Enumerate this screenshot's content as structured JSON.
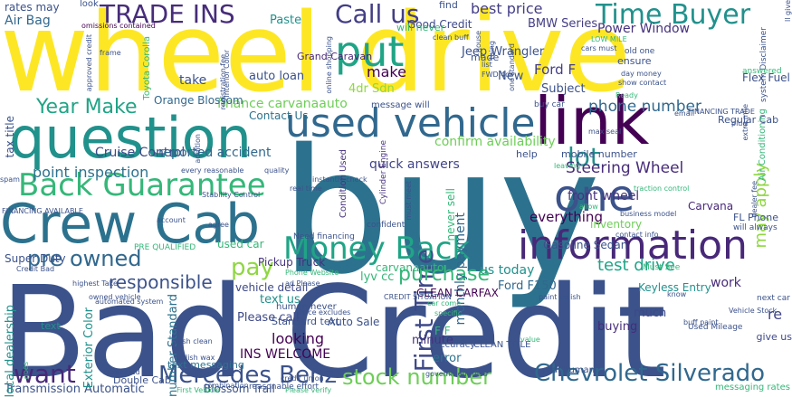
{
  "words": [
    {
      "t": "wheel drive",
      "c": "#fde725"
    },
    {
      "t": "Bad Credit",
      "c": "#3b528b"
    },
    {
      "t": "buy",
      "c": "#2c728e"
    },
    {
      "t": "question",
      "c": "#21918c"
    },
    {
      "t": "link",
      "c": "#440154"
    },
    {
      "t": "Crew Cab",
      "c": "#2c728e"
    },
    {
      "t": "used vehicle",
      "c": "#31688e"
    },
    {
      "t": "information",
      "c": "#482878"
    },
    {
      "t": "put",
      "c": "#20a486"
    },
    {
      "t": "one",
      "c": "#3b528b"
    },
    {
      "t": "Back Guarantee",
      "c": "#35b779"
    },
    {
      "t": "Money Back",
      "c": "#20a486"
    },
    {
      "t": "TRADE INS",
      "c": "#472c7a"
    },
    {
      "t": "Time Buyer",
      "c": "#21918c"
    },
    {
      "t": "Call us",
      "c": "#433e85"
    },
    {
      "t": "First Time",
      "c": "#3e4989"
    },
    {
      "t": "Chevrolet Silverado",
      "c": "#31688e"
    },
    {
      "t": "Mercedes Benz",
      "c": "#3b528b"
    },
    {
      "t": "stock number",
      "c": "#6ece58"
    },
    {
      "t": "pre owned",
      "c": "#31688e"
    },
    {
      "t": "pay",
      "c": "#90d743"
    },
    {
      "t": "want",
      "c": "#482878"
    },
    {
      "t": "Year Make",
      "c": "#20a486"
    },
    {
      "t": "purchase",
      "c": "#35b779"
    },
    {
      "t": "lot",
      "c": "#21918c"
    },
    {
      "t": "Steering Wheel",
      "c": "#472c7a"
    },
    {
      "t": "test drive",
      "c": "#20a486"
    },
    {
      "t": "phone number",
      "c": "#31688e"
    },
    {
      "t": "responsible",
      "c": "#3b528b"
    },
    {
      "t": "best price",
      "c": "#433e85"
    },
    {
      "t": "Cruise Control",
      "c": "#3e4989"
    },
    {
      "t": "reported accident",
      "c": "#31688e"
    },
    {
      "t": "point inspection",
      "c": "#2c728e"
    },
    {
      "t": "finance carvanaauto",
      "c": "#6ece58"
    },
    {
      "t": "quick answers",
      "c": "#414487"
    },
    {
      "t": "confirm availability",
      "c": "#6ece58"
    },
    {
      "t": "Contact Us",
      "c": "#2c728e"
    },
    {
      "t": "Orange Blossom",
      "c": "#31688e"
    },
    {
      "t": "auto loan",
      "c": "#3b528b"
    },
    {
      "t": "make",
      "c": "#440154"
    },
    {
      "t": "take",
      "c": "#3b528b"
    },
    {
      "t": "Subject",
      "c": "#3b528b"
    },
    {
      "t": "Ford F",
      "c": "#433e85"
    },
    {
      "t": "Power Window",
      "c": "#46327e"
    },
    {
      "t": "BMW Series",
      "c": "#433e85"
    },
    {
      "t": "Jeep Wrangler",
      "c": "#3b528b"
    },
    {
      "t": "Good Credit",
      "c": "#3e4989"
    },
    {
      "t": "Grand Caravan",
      "c": "#482878"
    },
    {
      "t": "front wheel",
      "c": "#46327e"
    },
    {
      "t": "everything",
      "c": "#440154"
    },
    {
      "t": "may apply",
      "c": "#90d743"
    },
    {
      "t": "Carvana",
      "c": "#482878"
    },
    {
      "t": "Ford F150",
      "c": "#31688e"
    },
    {
      "t": "Keyless Entry",
      "c": "#21918c"
    },
    {
      "t": "monthly payment",
      "c": "#31688e"
    },
    {
      "t": "text us",
      "c": "#21918c"
    },
    {
      "t": "us today",
      "c": "#21918c"
    },
    {
      "t": "Please call",
      "c": "#3e4989"
    },
    {
      "t": "looking",
      "c": "#440154"
    },
    {
      "t": "minute",
      "c": "#46327e"
    },
    {
      "t": "vehicle detail",
      "c": "#3e4989"
    },
    {
      "t": "Pickup Truck",
      "c": "#46327e"
    },
    {
      "t": "used car",
      "c": "#35b779"
    },
    {
      "t": "Super Duty",
      "c": "#3b528b"
    },
    {
      "t": "Transmission Automatic",
      "c": "#3b528b"
    },
    {
      "t": "INS WELCOME",
      "c": "#440154"
    },
    {
      "t": "buying",
      "c": "#472c7a"
    },
    {
      "t": "much",
      "c": "#3e4989"
    },
    {
      "t": "work",
      "c": "#472c7a"
    },
    {
      "t": "re",
      "c": "#414487"
    },
    {
      "t": "error",
      "c": "#2c728e"
    },
    {
      "t": "F F",
      "c": "#35b779"
    },
    {
      "t": "Auto Sale",
      "c": "#3b528b"
    },
    {
      "t": "CLEAN CARFAX",
      "c": "#440154"
    },
    {
      "t": "Gasoline Sedan",
      "c": "#3b528b"
    },
    {
      "t": "Flex Fuel",
      "c": "#3b528b"
    },
    {
      "t": "Air Bag",
      "c": "#31688e"
    },
    {
      "t": "rates may",
      "c": "#3b528b"
    },
    {
      "t": "tax title",
      "c": "#3b528b"
    },
    {
      "t": "text",
      "c": "#21918c"
    },
    {
      "t": "local dealership",
      "c": "#21918c"
    },
    {
      "t": "Exterior Color",
      "c": "#21918c"
    },
    {
      "t": "Double Cab",
      "c": "#3b528b"
    },
    {
      "t": "Blossom Trail",
      "c": "#3b528b"
    },
    {
      "t": "number Standard",
      "c": "#2c728e"
    },
    {
      "t": "text messaging",
      "c": "#2c728e"
    },
    {
      "t": "Standard text",
      "c": "#3b528b"
    },
    {
      "t": "human never",
      "c": "#3b528b"
    },
    {
      "t": "lyv cc",
      "c": "#35b779"
    },
    {
      "t": "carvanaauto",
      "c": "#35b779"
    },
    {
      "t": "Condition Used",
      "c": "#46327e"
    },
    {
      "t": "never sell",
      "c": "#35b779"
    },
    {
      "t": "Cylinder Engine",
      "c": "#46327e"
    },
    {
      "t": "mobile number",
      "c": "#3b528b"
    },
    {
      "t": "help",
      "c": "#3b528b"
    },
    {
      "t": "give us",
      "c": "#3e4989"
    },
    {
      "t": "Vehicle Stock",
      "c": "#3b528b"
    },
    {
      "t": "next car",
      "c": "#3b528b"
    },
    {
      "t": "Regular Cab",
      "c": "#3b528b"
    },
    {
      "t": "Air Conditioning",
      "c": "#35b779"
    },
    {
      "t": "FL Phone",
      "c": "#3b528b"
    },
    {
      "t": "will always",
      "c": "#3b528b"
    },
    {
      "t": "inventory",
      "c": "#6ece58"
    },
    {
      "t": "Paste",
      "c": "#21918c"
    },
    {
      "t": "find",
      "c": "#3b528b"
    },
    {
      "t": "will never",
      "c": "#35b779"
    },
    {
      "t": "4dr Sdn",
      "c": "#90d743"
    },
    {
      "t": "New",
      "c": "#3b528b"
    },
    {
      "t": "made",
      "c": "#3b528b"
    },
    {
      "t": "ensure",
      "c": "#3b528b"
    },
    {
      "t": "buy car",
      "c": "#3b528b"
    },
    {
      "t": "look",
      "c": "#3b528b"
    },
    {
      "t": "frame",
      "c": "#3b528b"
    },
    {
      "t": "approved credit",
      "c": "#3b528b"
    },
    {
      "t": "Toyota Corolla",
      "c": "#35b779"
    },
    {
      "t": "message will",
      "c": "#3b528b"
    },
    {
      "t": "omissions contained",
      "c": "#440154"
    },
    {
      "t": "real human",
      "c": "#3b528b"
    },
    {
      "t": "CLEAN TITLE",
      "c": "#3b528b"
    },
    {
      "t": "accuracy",
      "c": "#3b528b"
    },
    {
      "t": "government fees",
      "c": "#3b528b"
    },
    {
      "t": "polish wax",
      "c": "#3b528b"
    },
    {
      "t": "wash clean",
      "c": "#3b528b"
    },
    {
      "t": "Must See",
      "c": "#35b779"
    },
    {
      "t": "Used Mileage",
      "c": "#3b528b"
    },
    {
      "t": "buff paint",
      "c": "#3b528b"
    },
    {
      "t": "messaging rates",
      "c": "#35b779"
    },
    {
      "t": "system Disclaimer",
      "c": "#3b528b"
    },
    {
      "t": "show contact",
      "c": "#3b528b"
    },
    {
      "t": "day money",
      "c": "#3b528b"
    },
    {
      "t": "old one",
      "c": "#3b528b"
    },
    {
      "t": "cars must",
      "c": "#3b528b"
    },
    {
      "t": "answered",
      "c": "#35b779"
    },
    {
      "t": "ll give",
      "c": "#3b528b"
    },
    {
      "t": "Need financing",
      "c": "#3b528b"
    },
    {
      "t": "real time",
      "c": "#3b528b"
    },
    {
      "t": "Phone Website",
      "c": "#35b779"
    },
    {
      "t": "PRE QUALIFIED",
      "c": "#35b779"
    },
    {
      "t": "Credit Bad",
      "c": "#3b528b"
    },
    {
      "t": "owned vehicle",
      "c": "#3b528b"
    },
    {
      "t": "reasonable effort",
      "c": "#3b528b"
    },
    {
      "t": "credit union",
      "c": "#3b528b"
    },
    {
      "t": "Please verify",
      "c": "#35b779"
    },
    {
      "t": "dedicated",
      "c": "#3b528b"
    },
    {
      "t": "First Vehicle",
      "c": "#35b779"
    },
    {
      "t": "every reasonable",
      "c": "#3b528b"
    },
    {
      "t": "quality",
      "c": "#3b528b"
    },
    {
      "t": "Stability Control",
      "c": "#3b528b"
    },
    {
      "t": "FINANCING AVAILABLE",
      "c": "#3b528b"
    },
    {
      "t": "account",
      "c": "#3b528b"
    },
    {
      "t": "agree",
      "c": "#3b528b"
    },
    {
      "t": "business model",
      "c": "#3b528b"
    },
    {
      "t": "traction control",
      "c": "#35b779"
    },
    {
      "t": "contact info",
      "c": "#3b528b"
    },
    {
      "t": "online shopping",
      "c": "#3b528b"
    },
    {
      "t": "registration fee",
      "c": "#3b528b"
    },
    {
      "t": "Interior Color",
      "c": "#3b528b"
    },
    {
      "t": "house",
      "c": "#3b528b"
    },
    {
      "t": "list",
      "c": "#3b528b"
    },
    {
      "t": "FWD 4dr",
      "c": "#3b528b"
    },
    {
      "t": "one standard",
      "c": "#3b528b"
    },
    {
      "t": "thing",
      "c": "#3b528b"
    },
    {
      "t": "LOW MILE",
      "c": "#35b779"
    },
    {
      "t": "clean buff",
      "c": "#3b528b"
    },
    {
      "t": "max seal",
      "c": "#3b528b"
    },
    {
      "t": "FINANCING TRADE",
      "c": "#3b528b"
    },
    {
      "t": "email",
      "c": "#3b528b"
    },
    {
      "t": "plug",
      "c": "#3b528b"
    },
    {
      "t": "extra mile",
      "c": "#3b528b"
    },
    {
      "t": "dealer fee",
      "c": "#3b528b"
    },
    {
      "t": "know",
      "c": "#3b528b"
    },
    {
      "t": "car come",
      "c": "#35b779"
    },
    {
      "t": "specific",
      "c": "#35b779"
    },
    {
      "t": "value",
      "c": "#35b779"
    },
    {
      "t": "paint polish",
      "c": "#3b528b"
    },
    {
      "t": "CREDIT SITUATION",
      "c": "#3b528b"
    },
    {
      "t": "Price excludes",
      "c": "#3b528b"
    },
    {
      "t": "ad Please",
      "c": "#3b528b"
    },
    {
      "t": "combination",
      "c": "#3b528b"
    },
    {
      "t": "highest Take",
      "c": "#3b528b"
    },
    {
      "t": "automated system",
      "c": "#3b528b"
    },
    {
      "t": "goes",
      "c": "#35b779"
    },
    {
      "t": "spam",
      "c": "#3b528b"
    },
    {
      "t": "confident",
      "c": "#3b528b"
    },
    {
      "t": "allow",
      "c": "#35b779"
    },
    {
      "t": "leaving",
      "c": "#35b779"
    },
    {
      "t": "instantly check",
      "c": "#3b528b"
    },
    {
      "t": "must meet",
      "c": "#3b528b"
    },
    {
      "t": "addition",
      "c": "#3b528b"
    },
    {
      "t": "Ready",
      "c": "#35b779"
    },
    {
      "t": "car s",
      "c": "#3b528b"
    },
    {
      "t": "text message",
      "c": "#35b779"
    },
    {
      "t": "trade",
      "c": "#35b779"
    },
    {
      "t": "won",
      "c": "#3b528b"
    }
  ]
}
